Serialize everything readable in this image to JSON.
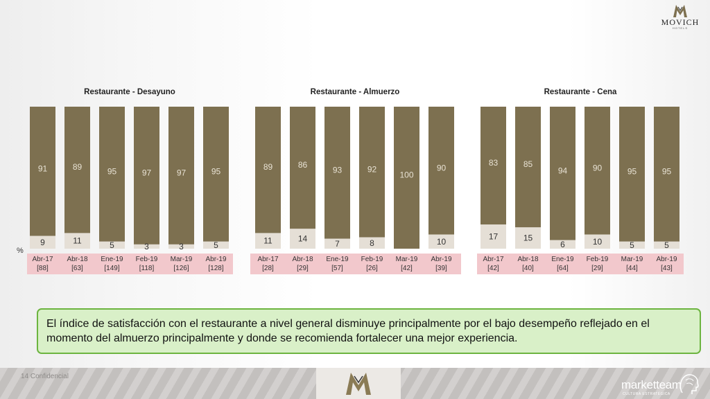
{
  "brand": {
    "logo_name": "MOVICH",
    "logo_sub": "HOTELS",
    "footer_brand": "marketteam",
    "footer_brand_sub": "CULTURA ESTRATÉGICA",
    "footer_text": "14 Confidencial"
  },
  "colors": {
    "satisfied": "#7d7050",
    "dissatisfied": "#e5dfd6",
    "bar_text_dark": "#e8e2d4",
    "bar_text_light": "#333333",
    "label_band": "#f2c8cc",
    "note_border": "#6cb43f",
    "note_bg": "#d9f0c8"
  },
  "percent_symbol": "%",
  "note": "El índice de satisfacción con el restaurante a nivel general disminuye principalmente por el bajo desempeño reflejado en el momento del almuerzo principalmente y donde se recomienda fortalecer una mejor experiencia.",
  "chart_data": [
    {
      "type": "bar",
      "stacked": true,
      "title": "Restaurante - Desayuno",
      "categories": [
        "Abr-17",
        "Abr-18",
        "Ene-19",
        "Feb-19",
        "Mar-19",
        "Abr-19"
      ],
      "sample_sizes": [
        "[88]",
        "[63]",
        "[149]",
        "[118]",
        "[126]",
        "[128]"
      ],
      "series": [
        {
          "values": [
            91,
            89,
            95,
            97,
            97,
            95
          ]
        },
        {
          "values": [
            9,
            11,
            5,
            3,
            3,
            5
          ]
        }
      ],
      "ylim": [
        0,
        100
      ]
    },
    {
      "type": "bar",
      "stacked": true,
      "title": "Restaurante - Almuerzo",
      "categories": [
        "Abr-17",
        "Abr-18",
        "Ene-19",
        "Feb-19",
        "Mar-19",
        "Abr-19"
      ],
      "sample_sizes": [
        "[28]",
        "[29]",
        "[57]",
        "[26]",
        "[42]",
        "[39]"
      ],
      "series": [
        {
          "values": [
            89,
            86,
            93,
            92,
            100,
            90
          ]
        },
        {
          "values": [
            11,
            14,
            7,
            8,
            null,
            10
          ]
        }
      ],
      "ylim": [
        0,
        100
      ]
    },
    {
      "type": "bar",
      "stacked": true,
      "title": "Restaurante - Cena",
      "categories": [
        "Abr-17",
        "Abr-18",
        "Ene-19",
        "Feb-19",
        "Mar-19",
        "Abr-19"
      ],
      "sample_sizes": [
        "[42]",
        "[40]",
        "[64]",
        "[29]",
        "[44]",
        "[43]"
      ],
      "series": [
        {
          "values": [
            83,
            85,
            94,
            90,
            95,
            95
          ]
        },
        {
          "values": [
            17,
            15,
            6,
            10,
            5,
            5
          ]
        }
      ],
      "ylim": [
        0,
        100
      ]
    }
  ]
}
